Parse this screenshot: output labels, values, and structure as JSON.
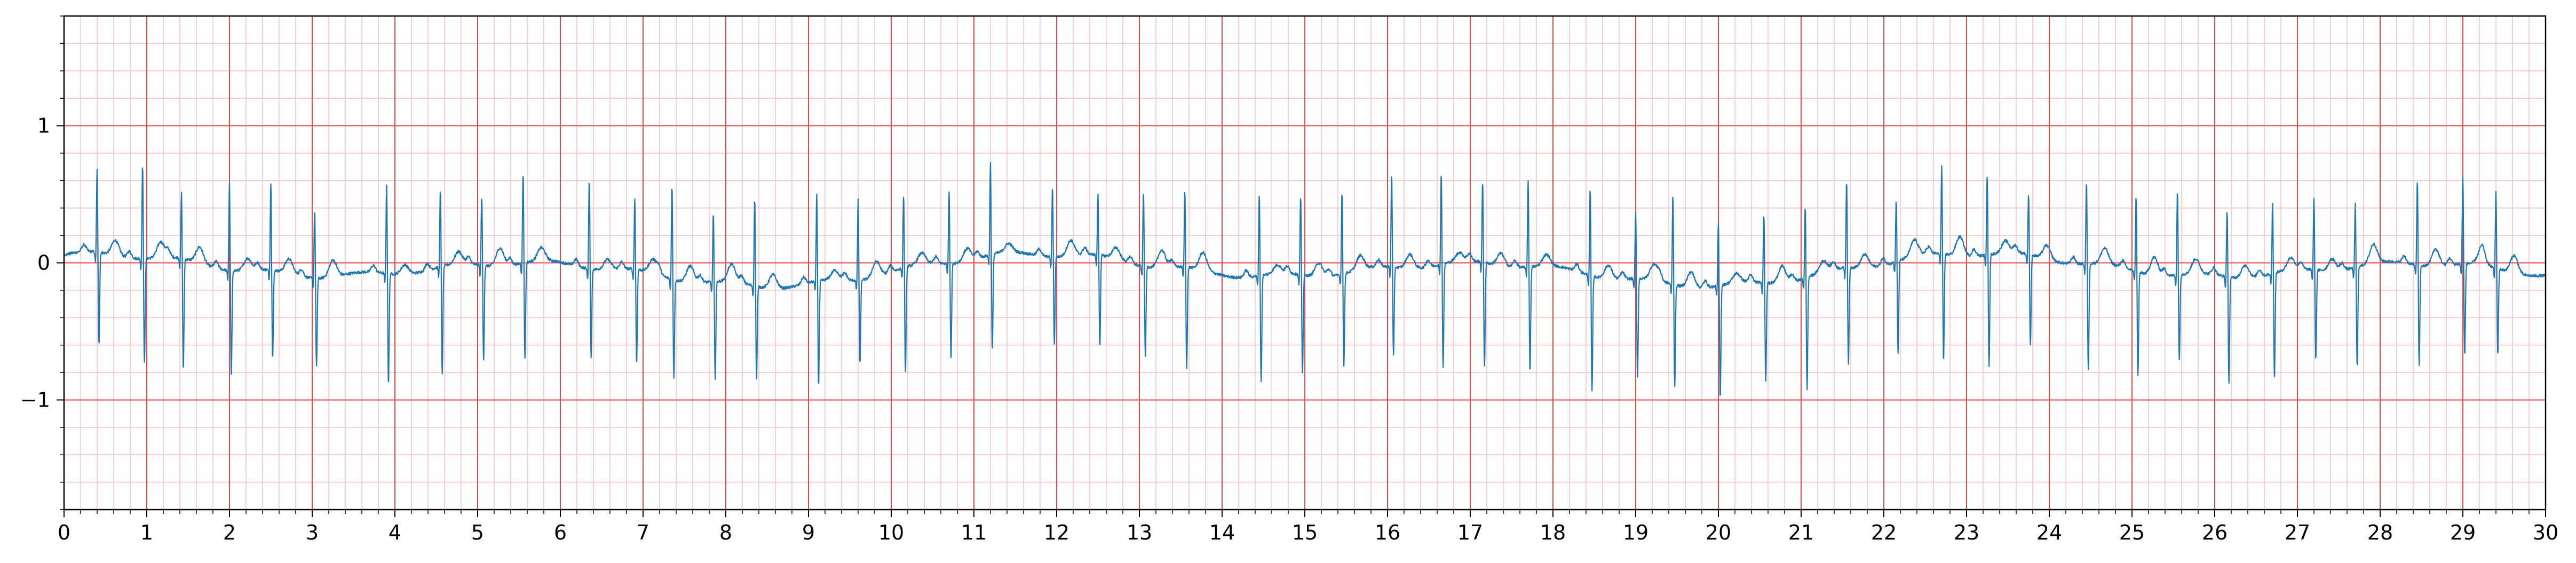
{
  "chart_data": {
    "type": "line",
    "title": "",
    "xlabel": "",
    "ylabel": "",
    "xlim": [
      0,
      30
    ],
    "ylim": [
      -1.8,
      1.8
    ],
    "x_ticks": [
      0,
      1,
      2,
      3,
      4,
      5,
      6,
      7,
      8,
      9,
      10,
      11,
      12,
      13,
      14,
      15,
      16,
      17,
      18,
      19,
      20,
      21,
      22,
      23,
      24,
      25,
      26,
      27,
      28,
      29,
      30
    ],
    "x_tick_labels": [
      "0",
      "1",
      "2",
      "3",
      "4",
      "5",
      "6",
      "7",
      "8",
      "9",
      "10",
      "11",
      "12",
      "13",
      "14",
      "15",
      "16",
      "17",
      "18",
      "19",
      "20",
      "21",
      "22",
      "23",
      "24",
      "25",
      "26",
      "27",
      "28",
      "29",
      "30"
    ],
    "y_ticks": [
      -1,
      0,
      1
    ],
    "y_tick_labels": [
      "−1",
      "0",
      "1"
    ],
    "grid": true,
    "grid_major_x": 1,
    "grid_minor_x": 0.2,
    "grid_major_y": 1,
    "grid_minor_y": 0.2,
    "colors": {
      "signal": "#1f77b4",
      "grid_major": "#e8474a",
      "grid_minor": "#f8c0c0",
      "axes": "#000000"
    },
    "series": [
      {
        "beat_times": [
          0.4,
          0.95,
          1.42,
          2.0,
          2.5,
          3.03,
          3.9,
          4.55,
          5.05,
          5.55,
          6.35,
          6.9,
          7.35,
          7.85,
          8.35,
          9.1,
          9.6,
          10.15,
          10.7,
          11.2,
          11.95,
          12.5,
          13.05,
          13.55,
          14.45,
          14.95,
          15.45,
          16.05,
          16.65,
          17.15,
          17.7,
          18.45,
          19.0,
          19.45,
          20.0,
          20.55,
          21.05,
          21.55,
          22.15,
          22.7,
          23.25,
          23.75,
          24.45,
          25.05,
          25.55,
          26.15,
          26.7,
          27.2,
          27.7,
          28.45,
          29.0,
          29.4
        ]
      }
    ]
  }
}
